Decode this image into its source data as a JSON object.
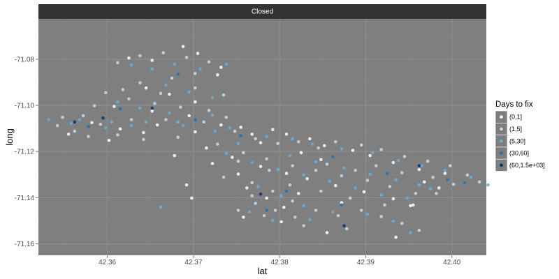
{
  "chart_data": {
    "type": "scatter",
    "facet_label": "Closed",
    "xlabel": "lat",
    "ylabel": "long",
    "xlim": [
      42.352,
      42.404
    ],
    "ylim": [
      -71.165,
      -71.0625
    ],
    "x_ticks": [
      42.36,
      42.37,
      42.38,
      42.39,
      42.4
    ],
    "x_tick_labels": [
      "42.36",
      "42.37",
      "42.38",
      "42.39",
      "42.40"
    ],
    "y_ticks": [
      -71.16,
      -71.14,
      -71.12,
      -71.1,
      -71.08
    ],
    "y_tick_labels": [
      "-71.16",
      "-71.14",
      "-71.12",
      "-71.10",
      "-71.08"
    ],
    "grid": true,
    "panel_background": "#7f7f7f",
    "strip_background": "#333333",
    "legend": {
      "title": "Days to fix",
      "position": "right",
      "entries": [
        {
          "label": "(0,1]",
          "color": "#ffffff"
        },
        {
          "label": "(1,5]",
          "color": "#c6dbef"
        },
        {
          "label": "(5,30]",
          "color": "#6baed6"
        },
        {
          "label": "(30,60]",
          "color": "#2171b5"
        },
        {
          "label": "(60,1.5e+03]",
          "color": "#08306b"
        }
      ]
    },
    "series": [
      {
        "name": "(0,1]",
        "color": "#ffffff",
        "points": [
          [
            42.3625,
            -71.0795
          ],
          [
            42.3652,
            -71.0805
          ],
          [
            42.3688,
            -71.0745
          ],
          [
            42.3705,
            -71.0775
          ],
          [
            42.3732,
            -71.0835
          ],
          [
            42.3728,
            -71.0868
          ],
          [
            42.3645,
            -71.0925
          ],
          [
            42.3672,
            -71.0952
          ],
          [
            42.3702,
            -71.0985
          ],
          [
            42.3608,
            -71.1005
          ],
          [
            42.3652,
            -71.1025
          ],
          [
            42.3695,
            -71.1045
          ],
          [
            42.3732,
            -71.1085
          ],
          [
            42.3582,
            -71.1075
          ],
          [
            42.3615,
            -71.1102
          ],
          [
            42.3658,
            -71.1085
          ],
          [
            42.3702,
            -71.1115
          ],
          [
            42.3755,
            -71.1095
          ],
          [
            42.3768,
            -71.1125
          ],
          [
            42.3792,
            -71.1105
          ],
          [
            42.3808,
            -71.1125
          ],
          [
            42.3835,
            -71.1145
          ],
          [
            42.3852,
            -71.1175
          ],
          [
            42.3885,
            -71.1195
          ],
          [
            42.3905,
            -71.1218
          ],
          [
            42.3932,
            -71.1248
          ],
          [
            42.3962,
            -71.1278
          ],
          [
            42.3992,
            -71.1295
          ],
          [
            42.3715,
            -71.1185
          ],
          [
            42.3745,
            -71.1225
          ],
          [
            42.3778,
            -71.1265
          ],
          [
            42.3808,
            -71.1295
          ],
          [
            42.3832,
            -71.1318
          ],
          [
            42.3865,
            -71.1348
          ],
          [
            42.3898,
            -71.1375
          ],
          [
            42.3932,
            -71.1405
          ],
          [
            42.3955,
            -71.1432
          ],
          [
            42.3762,
            -71.1358
          ],
          [
            42.3785,
            -71.1402
          ],
          [
            42.3805,
            -71.1442
          ],
          [
            42.3758,
            -71.1485
          ],
          [
            42.3802,
            -71.1505
          ],
          [
            42.3855,
            -71.1552
          ],
          [
            42.3935,
            -71.1572
          ],
          [
            42.3952,
            -71.1435
          ],
          [
            42.3692,
            -71.1345
          ],
          [
            42.3698,
            -71.1402
          ],
          [
            42.3555,
            -71.1125
          ],
          [
            42.3602,
            -71.1152
          ],
          [
            42.3642,
            -71.1118
          ],
          [
            42.3778,
            -71.1162
          ],
          [
            42.3825,
            -71.1205
          ],
          [
            42.3848,
            -71.1235
          ],
          [
            42.3968,
            -71.1332
          ],
          [
            42.3985,
            -71.1358
          ],
          [
            42.3678,
            -71.1218
          ],
          [
            42.3722,
            -71.1252
          ],
          [
            42.3752,
            -71.1298
          ],
          [
            42.3822,
            -71.1382
          ],
          [
            42.3872,
            -71.1422
          ]
        ]
      },
      {
        "name": "(1,5]",
        "color": "#c6dbef",
        "points": [
          [
            42.3612,
            -71.0815
          ],
          [
            42.3638,
            -71.0785
          ],
          [
            42.3665,
            -71.0772
          ],
          [
            42.3692,
            -71.0792
          ],
          [
            42.3718,
            -71.0812
          ],
          [
            42.3702,
            -71.0862
          ],
          [
            42.3675,
            -71.0882
          ],
          [
            42.3638,
            -71.0902
          ],
          [
            42.3598,
            -71.0945
          ],
          [
            42.3625,
            -71.0972
          ],
          [
            42.3655,
            -71.0992
          ],
          [
            42.3685,
            -71.1008
          ],
          [
            42.3718,
            -71.1022
          ],
          [
            42.3738,
            -71.1052
          ],
          [
            42.3572,
            -71.1045
          ],
          [
            42.3592,
            -71.1082
          ],
          [
            42.3628,
            -71.1062
          ],
          [
            42.3668,
            -71.1062
          ],
          [
            42.3712,
            -71.1072
          ],
          [
            42.3542,
            -71.1088
          ],
          [
            42.3562,
            -71.1112
          ],
          [
            42.3748,
            -71.1112
          ],
          [
            42.3772,
            -71.1145
          ],
          [
            42.3798,
            -71.1165
          ],
          [
            42.3822,
            -71.1158
          ],
          [
            42.3845,
            -71.1185
          ],
          [
            42.3865,
            -71.1158
          ],
          [
            42.3895,
            -71.1172
          ],
          [
            42.3918,
            -71.1192
          ],
          [
            42.3945,
            -71.1222
          ],
          [
            42.3972,
            -71.1242
          ],
          [
            42.3998,
            -71.1262
          ],
          [
            42.4018,
            -71.1302
          ],
          [
            42.4032,
            -71.1332
          ],
          [
            42.3728,
            -71.1168
          ],
          [
            42.3758,
            -71.1205
          ],
          [
            42.3785,
            -71.1232
          ],
          [
            42.3815,
            -71.1262
          ],
          [
            42.3842,
            -71.1282
          ],
          [
            42.3872,
            -71.1305
          ],
          [
            42.3902,
            -71.1325
          ],
          [
            42.3928,
            -71.1352
          ],
          [
            42.3958,
            -71.1382
          ],
          [
            42.3982,
            -71.1382
          ],
          [
            42.3735,
            -71.1312
          ],
          [
            42.3768,
            -71.1335
          ],
          [
            42.3792,
            -71.1372
          ],
          [
            42.3815,
            -71.1415
          ],
          [
            42.3772,
            -71.1425
          ],
          [
            42.3752,
            -71.1455
          ],
          [
            42.3782,
            -71.1478
          ],
          [
            42.3818,
            -71.1485
          ],
          [
            42.3842,
            -71.1455
          ],
          [
            42.3868,
            -71.1478
          ],
          [
            42.3895,
            -71.1455
          ],
          [
            42.3918,
            -71.1482
          ],
          [
            42.3942,
            -71.1512
          ],
          [
            42.3962,
            -71.1542
          ],
          [
            42.3878,
            -71.1535
          ],
          [
            42.3828,
            -71.1522
          ],
          [
            42.3585,
            -71.1002
          ],
          [
            42.3618,
            -71.0932
          ],
          [
            42.3662,
            -71.0948
          ],
          [
            42.3702,
            -71.0925
          ],
          [
            42.3735,
            -71.0955
          ],
          [
            42.3548,
            -71.1052
          ],
          [
            42.3578,
            -71.1135
          ],
          [
            42.3612,
            -71.1128
          ],
          [
            42.3642,
            -71.1148
          ],
          [
            42.3682,
            -71.1138
          ],
          [
            42.3752,
            -71.1242
          ],
          [
            42.3788,
            -71.1282
          ],
          [
            42.3855,
            -71.1255
          ],
          [
            42.3888,
            -71.1282
          ],
          [
            42.3912,
            -71.1262
          ],
          [
            42.3942,
            -71.1292
          ],
          [
            42.3978,
            -71.1312
          ],
          [
            42.4002,
            -71.1342
          ],
          [
            42.3812,
            -71.1345
          ],
          [
            42.3848,
            -71.1372
          ],
          [
            42.3882,
            -71.1402
          ],
          [
            42.3922,
            -71.1432
          ],
          [
            42.3768,
            -71.1392
          ],
          [
            42.3795,
            -71.1455
          ]
        ]
      },
      {
        "name": "(5,30]",
        "color": "#6baed6",
        "points": [
          [
            42.3628,
            -71.0825
          ],
          [
            42.3652,
            -71.0842
          ],
          [
            42.3678,
            -71.0822
          ],
          [
            42.3708,
            -71.0842
          ],
          [
            42.3738,
            -71.0822
          ],
          [
            42.3668,
            -71.0912
          ],
          [
            42.3695,
            -71.0942
          ],
          [
            42.3722,
            -71.0968
          ],
          [
            42.3612,
            -71.0985
          ],
          [
            42.3638,
            -71.1012
          ],
          [
            42.3672,
            -71.1032
          ],
          [
            42.3722,
            -71.1042
          ],
          [
            42.3532,
            -71.1062
          ],
          [
            42.3558,
            -71.1078
          ],
          [
            42.3598,
            -71.1098
          ],
          [
            42.3628,
            -71.1088
          ],
          [
            42.3688,
            -71.1088
          ],
          [
            42.3742,
            -71.1098
          ],
          [
            42.3785,
            -71.1135
          ],
          [
            42.3815,
            -71.1145
          ],
          [
            42.3838,
            -71.1168
          ],
          [
            42.3872,
            -71.1188
          ],
          [
            42.3908,
            -71.1205
          ],
          [
            42.3938,
            -71.1238
          ],
          [
            42.3965,
            -71.1262
          ],
          [
            42.3992,
            -71.1282
          ],
          [
            42.4022,
            -71.1312
          ],
          [
            42.4042,
            -71.1345
          ],
          [
            42.3738,
            -71.1208
          ],
          [
            42.3768,
            -71.1248
          ],
          [
            42.3798,
            -71.1278
          ],
          [
            42.3828,
            -71.1302
          ],
          [
            42.3858,
            -71.1328
          ],
          [
            42.3888,
            -71.1358
          ],
          [
            42.3918,
            -71.1388
          ],
          [
            42.3948,
            -71.1402
          ],
          [
            42.3975,
            -71.1362
          ],
          [
            42.3775,
            -71.1352
          ],
          [
            42.3802,
            -71.1392
          ],
          [
            42.3828,
            -71.1435
          ],
          [
            42.3765,
            -71.1462
          ],
          [
            42.3792,
            -71.1498
          ],
          [
            42.3835,
            -71.1495
          ],
          [
            42.3862,
            -71.1462
          ],
          [
            42.3902,
            -71.1472
          ],
          [
            42.3932,
            -71.1502
          ],
          [
            42.3952,
            -71.1552
          ],
          [
            42.3662,
            -71.1442
          ],
          [
            42.3812,
            -71.1218
          ],
          [
            42.3842,
            -71.1245
          ],
          [
            42.3875,
            -71.1272
          ],
          [
            42.3905,
            -71.1298
          ],
          [
            42.3935,
            -71.1322
          ],
          [
            42.3962,
            -71.1345
          ],
          [
            42.3568,
            -71.1062
          ],
          [
            42.3605,
            -71.1072
          ],
          [
            42.3645,
            -71.1072
          ],
          [
            42.3682,
            -71.1072
          ],
          [
            42.3725,
            -71.1112
          ],
          [
            42.3752,
            -71.1165
          ]
        ]
      },
      {
        "name": "(30,60]",
        "color": "#2171b5",
        "points": [
          [
            42.3682,
            -71.0865
          ],
          [
            42.3615,
            -71.1015
          ],
          [
            42.3702,
            -71.1062
          ],
          [
            42.3755,
            -71.1132
          ],
          [
            42.3862,
            -71.1222
          ],
          [
            42.3925,
            -71.1295
          ],
          [
            42.3808,
            -71.1372
          ],
          [
            42.3872,
            -71.1432
          ],
          [
            42.3995,
            -71.1322
          ],
          [
            42.3785,
            -71.1455
          ],
          [
            42.3578,
            -71.1092
          ],
          [
            42.4015,
            -71.1335
          ]
        ]
      },
      {
        "name": "(60,1.5e+03]",
        "color": "#08306b",
        "points": [
          [
            42.3595,
            -71.1055
          ],
          [
            42.3652,
            -71.1012
          ],
          [
            42.3778,
            -71.1385
          ],
          [
            42.3875,
            -71.1522
          ],
          [
            42.3962,
            -71.1262
          ],
          [
            42.3562,
            -71.1072
          ]
        ]
      }
    ]
  }
}
